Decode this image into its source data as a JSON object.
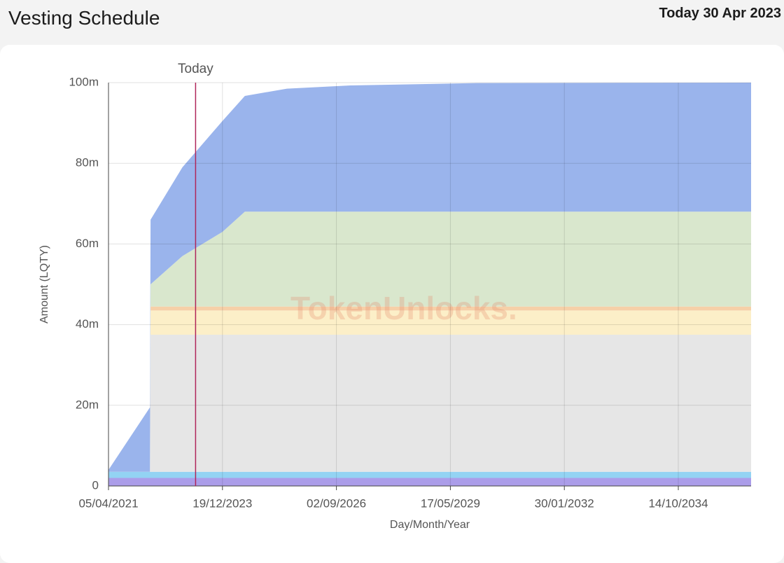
{
  "header": {
    "title": "Vesting Schedule",
    "date": "Today 30 Apr 2023"
  },
  "watermark": "TokenUnlocks.",
  "chart_data": {
    "type": "stacked-area",
    "x_label": "Day/Month/Year",
    "y_label": "Amount (LQTY)",
    "x": [
      "2021-04-05",
      "2022-03-30",
      "2022-04-05",
      "2023-01-05",
      "2023-12-19",
      "2024-06-30",
      "2025-06-30",
      "2027-01-01",
      "2030-01-01",
      "2036-07-06"
    ],
    "series": [
      {
        "color": "#ab9de9",
        "values": [
          2,
          2,
          2,
          2,
          2,
          2,
          2,
          2,
          2,
          2
        ]
      },
      {
        "color": "#93d3f3",
        "values": [
          1.5,
          1.5,
          1.5,
          1.5,
          1.5,
          1.5,
          1.5,
          1.5,
          1.5,
          1.5
        ]
      },
      {
        "color": "#e6e6e6",
        "values": [
          0,
          0,
          34,
          34,
          34,
          34,
          34,
          34,
          34,
          34
        ]
      },
      {
        "color": "#fcefc8",
        "values": [
          0,
          0,
          6,
          6,
          6,
          6,
          6,
          6,
          6,
          6
        ]
      },
      {
        "color": "#f6d0a8",
        "values": [
          0,
          0,
          1,
          1,
          1,
          1,
          1,
          1,
          1,
          1
        ]
      },
      {
        "color": "#d9e7cd",
        "values": [
          0,
          0,
          5.5,
          12.5,
          18.5,
          23.5,
          23.5,
          23.5,
          23.5,
          23.5
        ]
      },
      {
        "color": "#9ab4ec",
        "values": [
          0.5,
          16,
          16,
          22,
          27.5,
          28.7,
          30.5,
          31.3,
          31.9,
          32
        ]
      }
    ],
    "xlim": [
      "2021-04-05",
      "2036-07-06"
    ],
    "xticks": [
      {
        "value": "2021-04-05",
        "label": "05/04/2021"
      },
      {
        "value": "2023-12-19",
        "label": "19/12/2023"
      },
      {
        "value": "2026-09-02",
        "label": "02/09/2026"
      },
      {
        "value": "2029-05-17",
        "label": "17/05/2029"
      },
      {
        "value": "2032-01-30",
        "label": "30/01/2032"
      },
      {
        "value": "2034-10-14",
        "label": "14/10/2034"
      }
    ],
    "ylim": [
      0,
      100
    ],
    "yticks": [
      0,
      {
        "value": 20,
        "label": "20m"
      },
      {
        "value": 40,
        "label": "40m"
      },
      {
        "value": 60,
        "label": "60m"
      },
      {
        "value": 80,
        "label": "80m"
      },
      {
        "value": 100,
        "label": "100m"
      }
    ],
    "grid": true,
    "annotations": [
      {
        "x": "2023-04-30",
        "label": "Today",
        "color": "#b0265a"
      }
    ]
  }
}
